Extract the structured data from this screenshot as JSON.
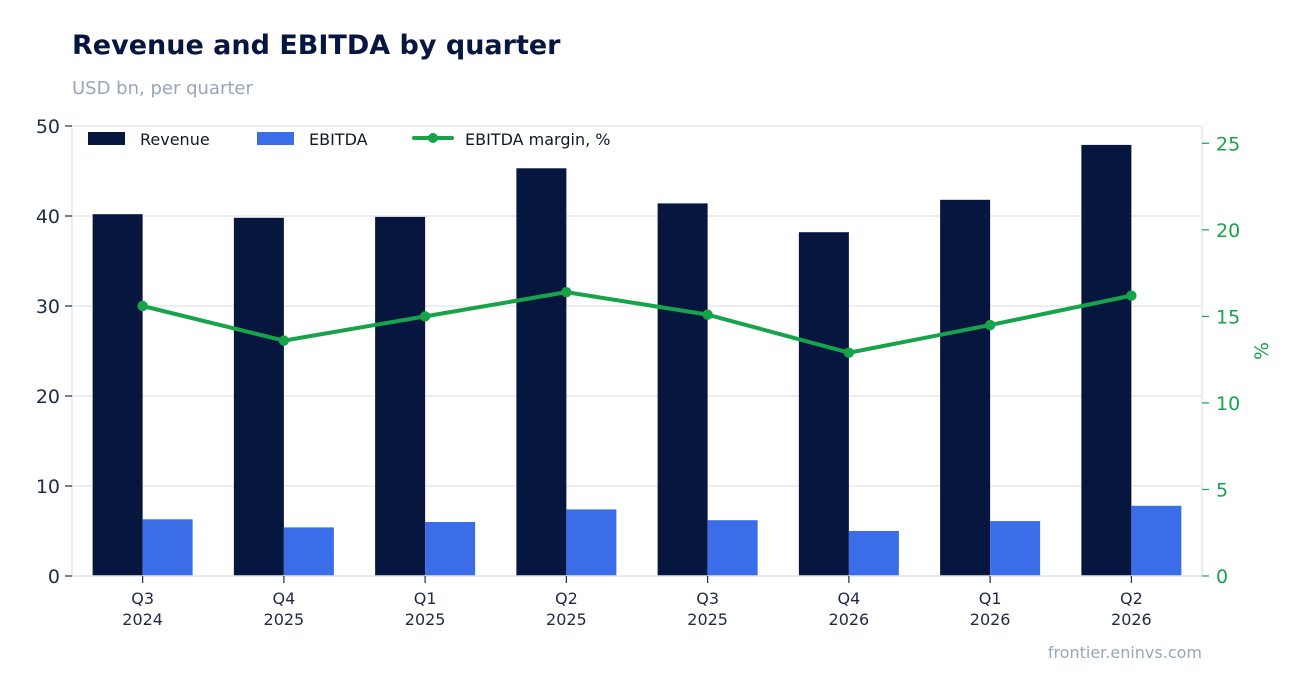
{
  "chart_data": {
    "type": "bar",
    "title": "Revenue and EBITDA by quarter",
    "subtitle": "USD bn, per quarter",
    "categories": [
      [
        "Q3",
        "2024"
      ],
      [
        "Q4",
        "2025"
      ],
      [
        "Q1",
        "2025"
      ],
      [
        "Q2",
        "2025"
      ],
      [
        "Q3",
        "2025"
      ],
      [
        "Q4",
        "2026"
      ],
      [
        "Q1",
        "2026"
      ],
      [
        "Q2",
        "2026"
      ]
    ],
    "series": [
      {
        "name": "Revenue",
        "type": "bar",
        "axis": "left",
        "color": "#06163f",
        "values": [
          40.2,
          39.8,
          39.9,
          45.3,
          41.4,
          38.2,
          41.8,
          47.9
        ]
      },
      {
        "name": "EBITDA",
        "type": "bar",
        "axis": "left",
        "color": "#3b6de8",
        "values": [
          6.3,
          5.4,
          6.0,
          7.4,
          6.2,
          5.0,
          6.1,
          7.8
        ]
      },
      {
        "name": "EBITDA margin, %",
        "type": "line",
        "axis": "right",
        "color": "#16a34a",
        "values": [
          15.6,
          13.6,
          15.0,
          16.4,
          15.1,
          12.9,
          14.5,
          16.2
        ]
      }
    ],
    "y_left": {
      "label": "",
      "ylim": [
        0,
        50
      ],
      "ticks": [
        0,
        10,
        20,
        30,
        40,
        50
      ]
    },
    "y_right": {
      "label": "%",
      "ylim": [
        0,
        26
      ],
      "ticks": [
        0,
        5,
        10,
        15,
        20,
        25
      ]
    },
    "grid": true,
    "legend_position": "top-left",
    "source": "frontier.eninvs.com"
  }
}
